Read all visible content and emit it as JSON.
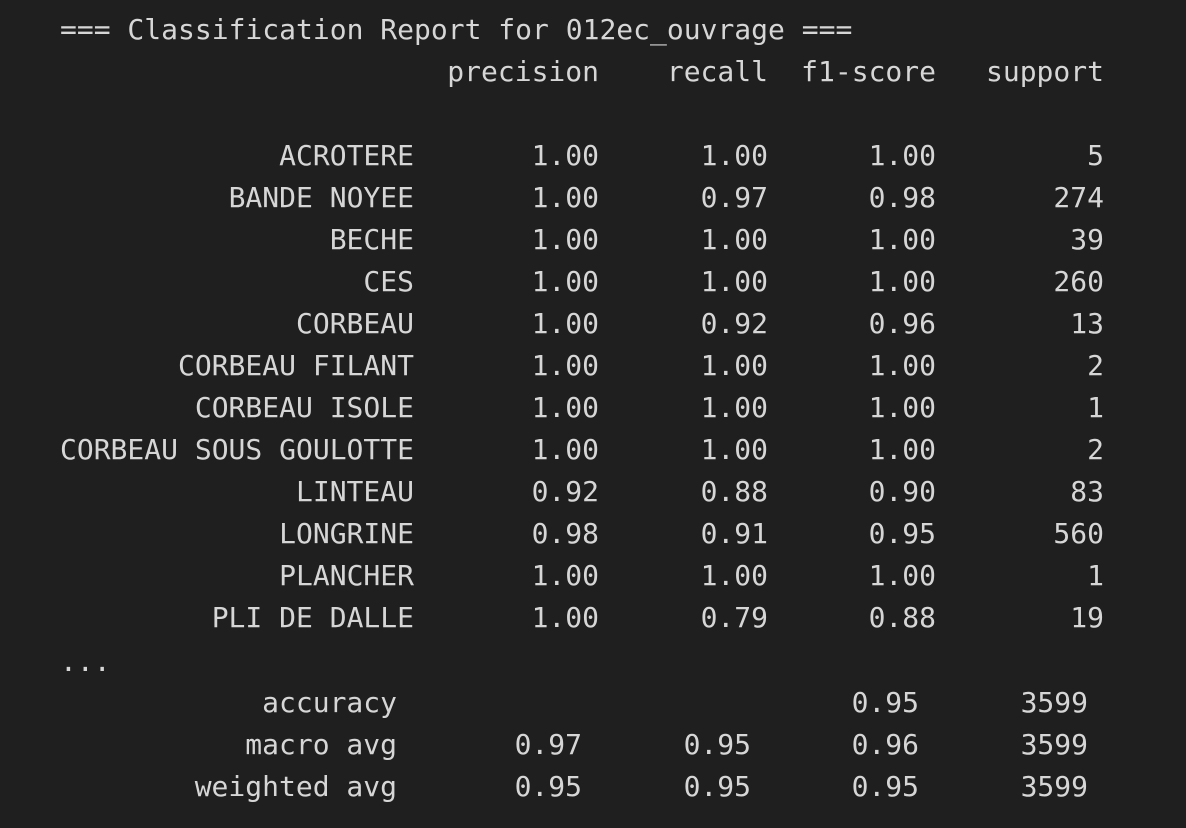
{
  "title": "=== Classification Report for 012ec_ouvrage ===",
  "headers": {
    "precision": "precision",
    "recall": "recall",
    "f1": "f1-score",
    "support": "support"
  },
  "rows": [
    {
      "label": "ACROTERE",
      "precision": "1.00",
      "recall": "1.00",
      "f1": "1.00",
      "support": "5"
    },
    {
      "label": "BANDE NOYEE",
      "precision": "1.00",
      "recall": "0.97",
      "f1": "0.98",
      "support": "274"
    },
    {
      "label": "BECHE",
      "precision": "1.00",
      "recall": "1.00",
      "f1": "1.00",
      "support": "39"
    },
    {
      "label": "CES",
      "precision": "1.00",
      "recall": "1.00",
      "f1": "1.00",
      "support": "260"
    },
    {
      "label": "CORBEAU",
      "precision": "1.00",
      "recall": "0.92",
      "f1": "0.96",
      "support": "13"
    },
    {
      "label": "CORBEAU FILANT",
      "precision": "1.00",
      "recall": "1.00",
      "f1": "1.00",
      "support": "2"
    },
    {
      "label": "CORBEAU ISOLE",
      "precision": "1.00",
      "recall": "1.00",
      "f1": "1.00",
      "support": "1"
    },
    {
      "label": "CORBEAU SOUS GOULOTTE",
      "precision": "1.00",
      "recall": "1.00",
      "f1": "1.00",
      "support": "2"
    },
    {
      "label": "LINTEAU",
      "precision": "0.92",
      "recall": "0.88",
      "f1": "0.90",
      "support": "83"
    },
    {
      "label": "LONGRINE",
      "precision": "0.98",
      "recall": "0.91",
      "f1": "0.95",
      "support": "560"
    },
    {
      "label": "PLANCHER",
      "precision": "1.00",
      "recall": "1.00",
      "f1": "1.00",
      "support": "1"
    },
    {
      "label": "PLI DE DALLE",
      "precision": "1.00",
      "recall": "0.79",
      "f1": "0.88",
      "support": "19"
    }
  ],
  "ellipsis": "...",
  "summary": [
    {
      "label": "accuracy",
      "precision": "",
      "recall": "",
      "f1": "0.95",
      "support": "3599"
    },
    {
      "label": "macro avg",
      "precision": "0.97",
      "recall": "0.95",
      "f1": "0.96",
      "support": "3599"
    },
    {
      "label": "weighted avg",
      "precision": "0.95",
      "recall": "0.95",
      "f1": "0.95",
      "support": "3599"
    }
  ]
}
